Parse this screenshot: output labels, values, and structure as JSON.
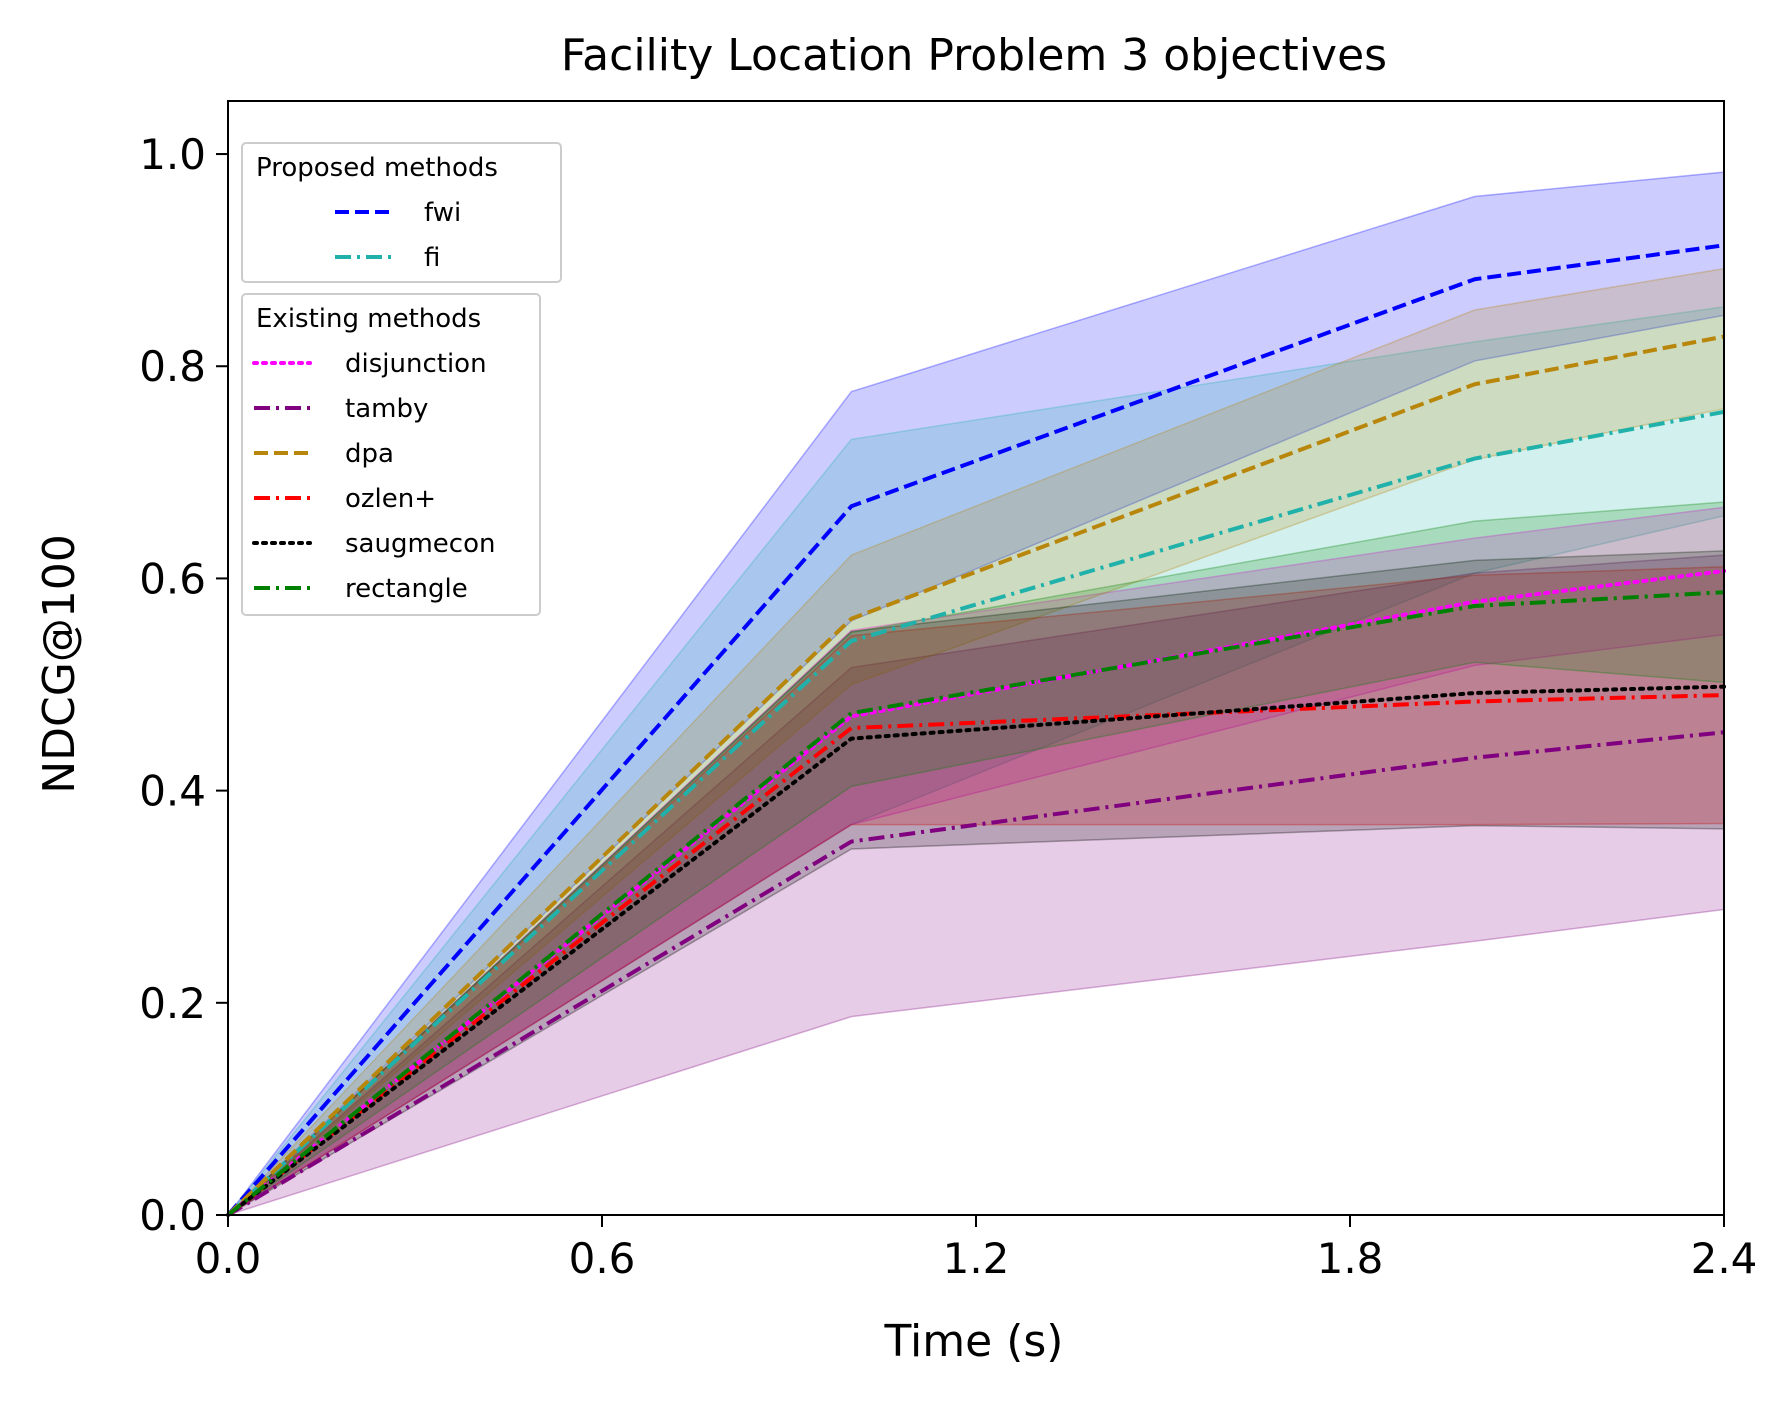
{
  "chart_data": {
    "type": "line",
    "title": "Facility Location Problem 3 objectives",
    "xlabel": "Time (s)",
    "ylabel": "NDCG@100",
    "xlim": [
      0,
      2.4
    ],
    "ylim": [
      0,
      1.05
    ],
    "xticks": [
      "0.0",
      "0.6",
      "1.2",
      "1.8",
      "2.4"
    ],
    "xtick_values": [
      0,
      0.6,
      1.2,
      1.8,
      2.4
    ],
    "yticks": [
      "0.0",
      "0.2",
      "0.4",
      "0.6",
      "0.8",
      "1.0"
    ],
    "ytick_values": [
      0,
      0.2,
      0.4,
      0.6,
      0.8,
      1.0
    ],
    "grid": false,
    "x": [
      0,
      1.0,
      2.0,
      2.4
    ],
    "legend_placement": "upper-left",
    "legend_groups": [
      {
        "title": "Proposed methods",
        "entries": [
          "fwi",
          "fi"
        ]
      },
      {
        "title": "Existing methods",
        "entries": [
          "disjunction",
          "tamby",
          "dpa",
          "ozlen+",
          "saugmecon",
          "rectangle"
        ]
      }
    ],
    "series": [
      {
        "name": "fwi",
        "color": "#0000ff",
        "style": "dashed",
        "values": [
          0,
          0.668,
          0.882,
          0.914
        ],
        "lower": [
          0,
          0.56,
          0.805,
          0.848
        ],
        "upper": [
          0,
          0.776,
          0.96,
          0.983
        ]
      },
      {
        "name": "fi",
        "color": "#20b2aa",
        "style": "dashdot",
        "values": [
          0,
          0.541,
          0.713,
          0.757
        ],
        "lower": [
          0,
          0.368,
          0.605,
          0.659
        ],
        "upper": [
          0,
          0.731,
          0.823,
          0.856
        ]
      },
      {
        "name": "disjunction",
        "color": "#ff00ff",
        "style": "dotted",
        "values": [
          0,
          0.47,
          0.578,
          0.607
        ],
        "lower": [
          0,
          0.368,
          0.518,
          0.547
        ],
        "upper": [
          0,
          0.551,
          0.638,
          0.667
        ]
      },
      {
        "name": "tamby",
        "color": "#800080",
        "style": "dashdot",
        "values": [
          0,
          0.352,
          0.431,
          0.455
        ],
        "lower": [
          0,
          0.187,
          0.258,
          0.288
        ],
        "upper": [
          0,
          0.516,
          0.605,
          0.622
        ]
      },
      {
        "name": "dpa",
        "color": "#b8860b",
        "style": "dashed",
        "values": [
          0,
          0.562,
          0.783,
          0.828
        ],
        "lower": [
          0,
          0.5,
          0.712,
          0.76
        ],
        "upper": [
          0,
          0.622,
          0.853,
          0.892
        ]
      },
      {
        "name": "ozlen+",
        "color": "#ff0000",
        "style": "dashdot",
        "values": [
          0,
          0.459,
          0.484,
          0.49
        ],
        "lower": [
          0,
          0.368,
          0.368,
          0.369
        ],
        "upper": [
          0,
          0.546,
          0.603,
          0.611
        ]
      },
      {
        "name": "saugmecon",
        "color": "#000000",
        "style": "dotted",
        "values": [
          0,
          0.449,
          0.492,
          0.498
        ],
        "lower": [
          0,
          0.345,
          0.367,
          0.364
        ],
        "upper": [
          0,
          0.55,
          0.617,
          0.626
        ]
      },
      {
        "name": "rectangle",
        "color": "#008000",
        "style": "dashdot",
        "values": [
          0,
          0.473,
          0.574,
          0.587
        ],
        "lower": [
          0,
          0.404,
          0.521,
          0.502
        ],
        "upper": [
          0,
          0.549,
          0.654,
          0.672
        ]
      }
    ]
  }
}
